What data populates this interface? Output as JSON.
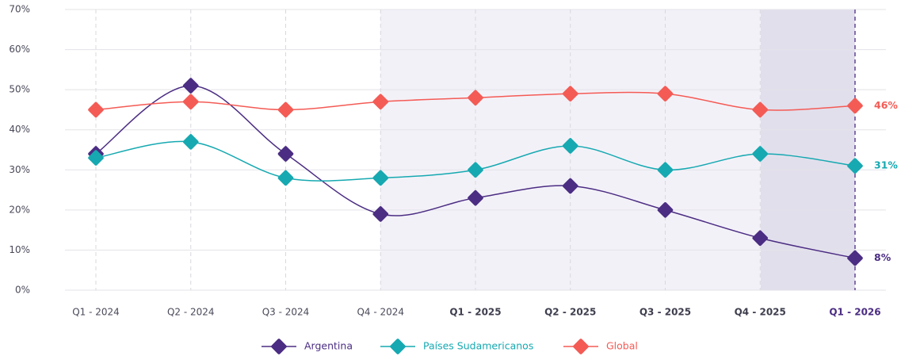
{
  "chart_data": {
    "type": "line",
    "categories": [
      "Q1 - 2024",
      "Q2 - 2024",
      "Q3 - 2024",
      "Q4 - 2024",
      "Q1 - 2025",
      "Q2 - 2025",
      "Q3 - 2025",
      "Q4 - 2025",
      "Q1 - 2026"
    ],
    "series": [
      {
        "name": "Argentina",
        "color": "#4b2d83",
        "values": [
          34,
          51,
          34,
          19,
          23,
          26,
          20,
          13,
          8
        ],
        "value_labels": [
          null,
          null,
          null,
          null,
          null,
          null,
          null,
          null,
          "8%"
        ]
      },
      {
        "name": "Países Sudamericanos",
        "color": "#16a9b1",
        "values": [
          33,
          37,
          28,
          28,
          30,
          36,
          30,
          34,
          31
        ],
        "value_labels": [
          null,
          null,
          null,
          null,
          null,
          null,
          null,
          null,
          "31%"
        ]
      },
      {
        "name": "Global",
        "color": "#f45b55",
        "values": [
          45,
          47,
          45,
          47,
          48,
          49,
          49,
          45,
          46
        ],
        "value_labels": [
          null,
          null,
          null,
          null,
          null,
          null,
          null,
          null,
          "46%"
        ]
      }
    ],
    "ylim": [
      0,
      70
    ],
    "yticks": [
      {
        "value": 0,
        "label": "0%"
      },
      {
        "value": 10,
        "label": "10%"
      },
      {
        "value": 20,
        "label": "20%"
      },
      {
        "value": 30,
        "label": "30%"
      },
      {
        "value": 40,
        "label": "40%"
      },
      {
        "value": 50,
        "label": "50%"
      },
      {
        "value": 60,
        "label": "60%"
      },
      {
        "value": 70,
        "label": "70%"
      }
    ],
    "grid": true,
    "legend": "bottom"
  }
}
